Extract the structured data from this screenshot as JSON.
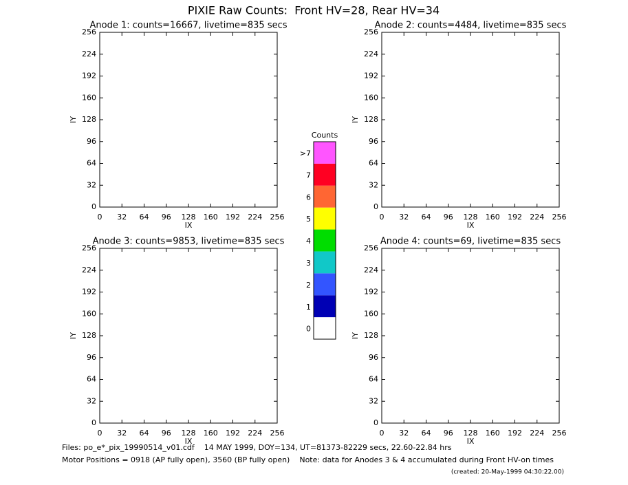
{
  "title": "PIXIE Raw Counts:  Front HV=28, Rear HV=34",
  "chart_data": [
    {
      "type": "scatter",
      "title": "Anode 1: counts=16667, livetime=835 secs",
      "xlabel": "IX",
      "ylabel": "IY",
      "xlim": [
        0,
        256
      ],
      "ylim": [
        0,
        256
      ],
      "xticks": [
        0,
        32,
        64,
        96,
        128,
        160,
        192,
        224,
        256
      ],
      "yticks": [
        0,
        32,
        64,
        96,
        128,
        160,
        192,
        224,
        256
      ]
    },
    {
      "type": "scatter",
      "title": "Anode 2: counts=4484, livetime=835 secs",
      "xlabel": "IX",
      "ylabel": "IY",
      "xlim": [
        0,
        256
      ],
      "ylim": [
        0,
        256
      ],
      "xticks": [
        0,
        32,
        64,
        96,
        128,
        160,
        192,
        224,
        256
      ],
      "yticks": [
        0,
        32,
        64,
        96,
        128,
        160,
        192,
        224,
        256
      ]
    },
    {
      "type": "scatter",
      "title": "Anode 3: counts=9853, livetime=835 secs",
      "xlabel": "IX",
      "ylabel": "IY",
      "xlim": [
        0,
        256
      ],
      "ylim": [
        0,
        256
      ],
      "xticks": [
        0,
        32,
        64,
        96,
        128,
        160,
        192,
        224,
        256
      ],
      "yticks": [
        0,
        32,
        64,
        96,
        128,
        160,
        192,
        224,
        256
      ]
    },
    {
      "type": "scatter",
      "title": "Anode 4: counts=69, livetime=835 secs",
      "xlabel": "IX",
      "ylabel": "IY",
      "xlim": [
        0,
        256
      ],
      "ylim": [
        0,
        256
      ],
      "xticks": [
        0,
        32,
        64,
        96,
        128,
        160,
        192,
        224,
        256
      ],
      "yticks": [
        0,
        32,
        64,
        96,
        128,
        160,
        192,
        224,
        256
      ]
    }
  ],
  "colorbar": {
    "title": "Counts",
    "ticks": [
      0,
      1,
      2,
      3,
      4,
      5,
      6,
      7,
      {
        "value": 8,
        "label": ">7"
      }
    ],
    "colors": [
      "#ffffff",
      "#0000b4",
      "#3355ff",
      "#11c8c8",
      "#00dd00",
      "#ffff00",
      "#ff6633",
      "#ff0022",
      "#ff55ff"
    ]
  },
  "footer": {
    "files": "Files: po_e*_pix_19990514_v01.cdf    14 MAY 1999, DOY=134, UT=81373-82229 secs, 22.60-22.84 hrs",
    "motor": "Motor Positions = 0918 (AP fully open), 3560 (BP fully open)    Note: data for Anodes 3 & 4 accumulated during Front HV-on times",
    "created": "(created: 20-May-1999 04:30:22.00)"
  }
}
